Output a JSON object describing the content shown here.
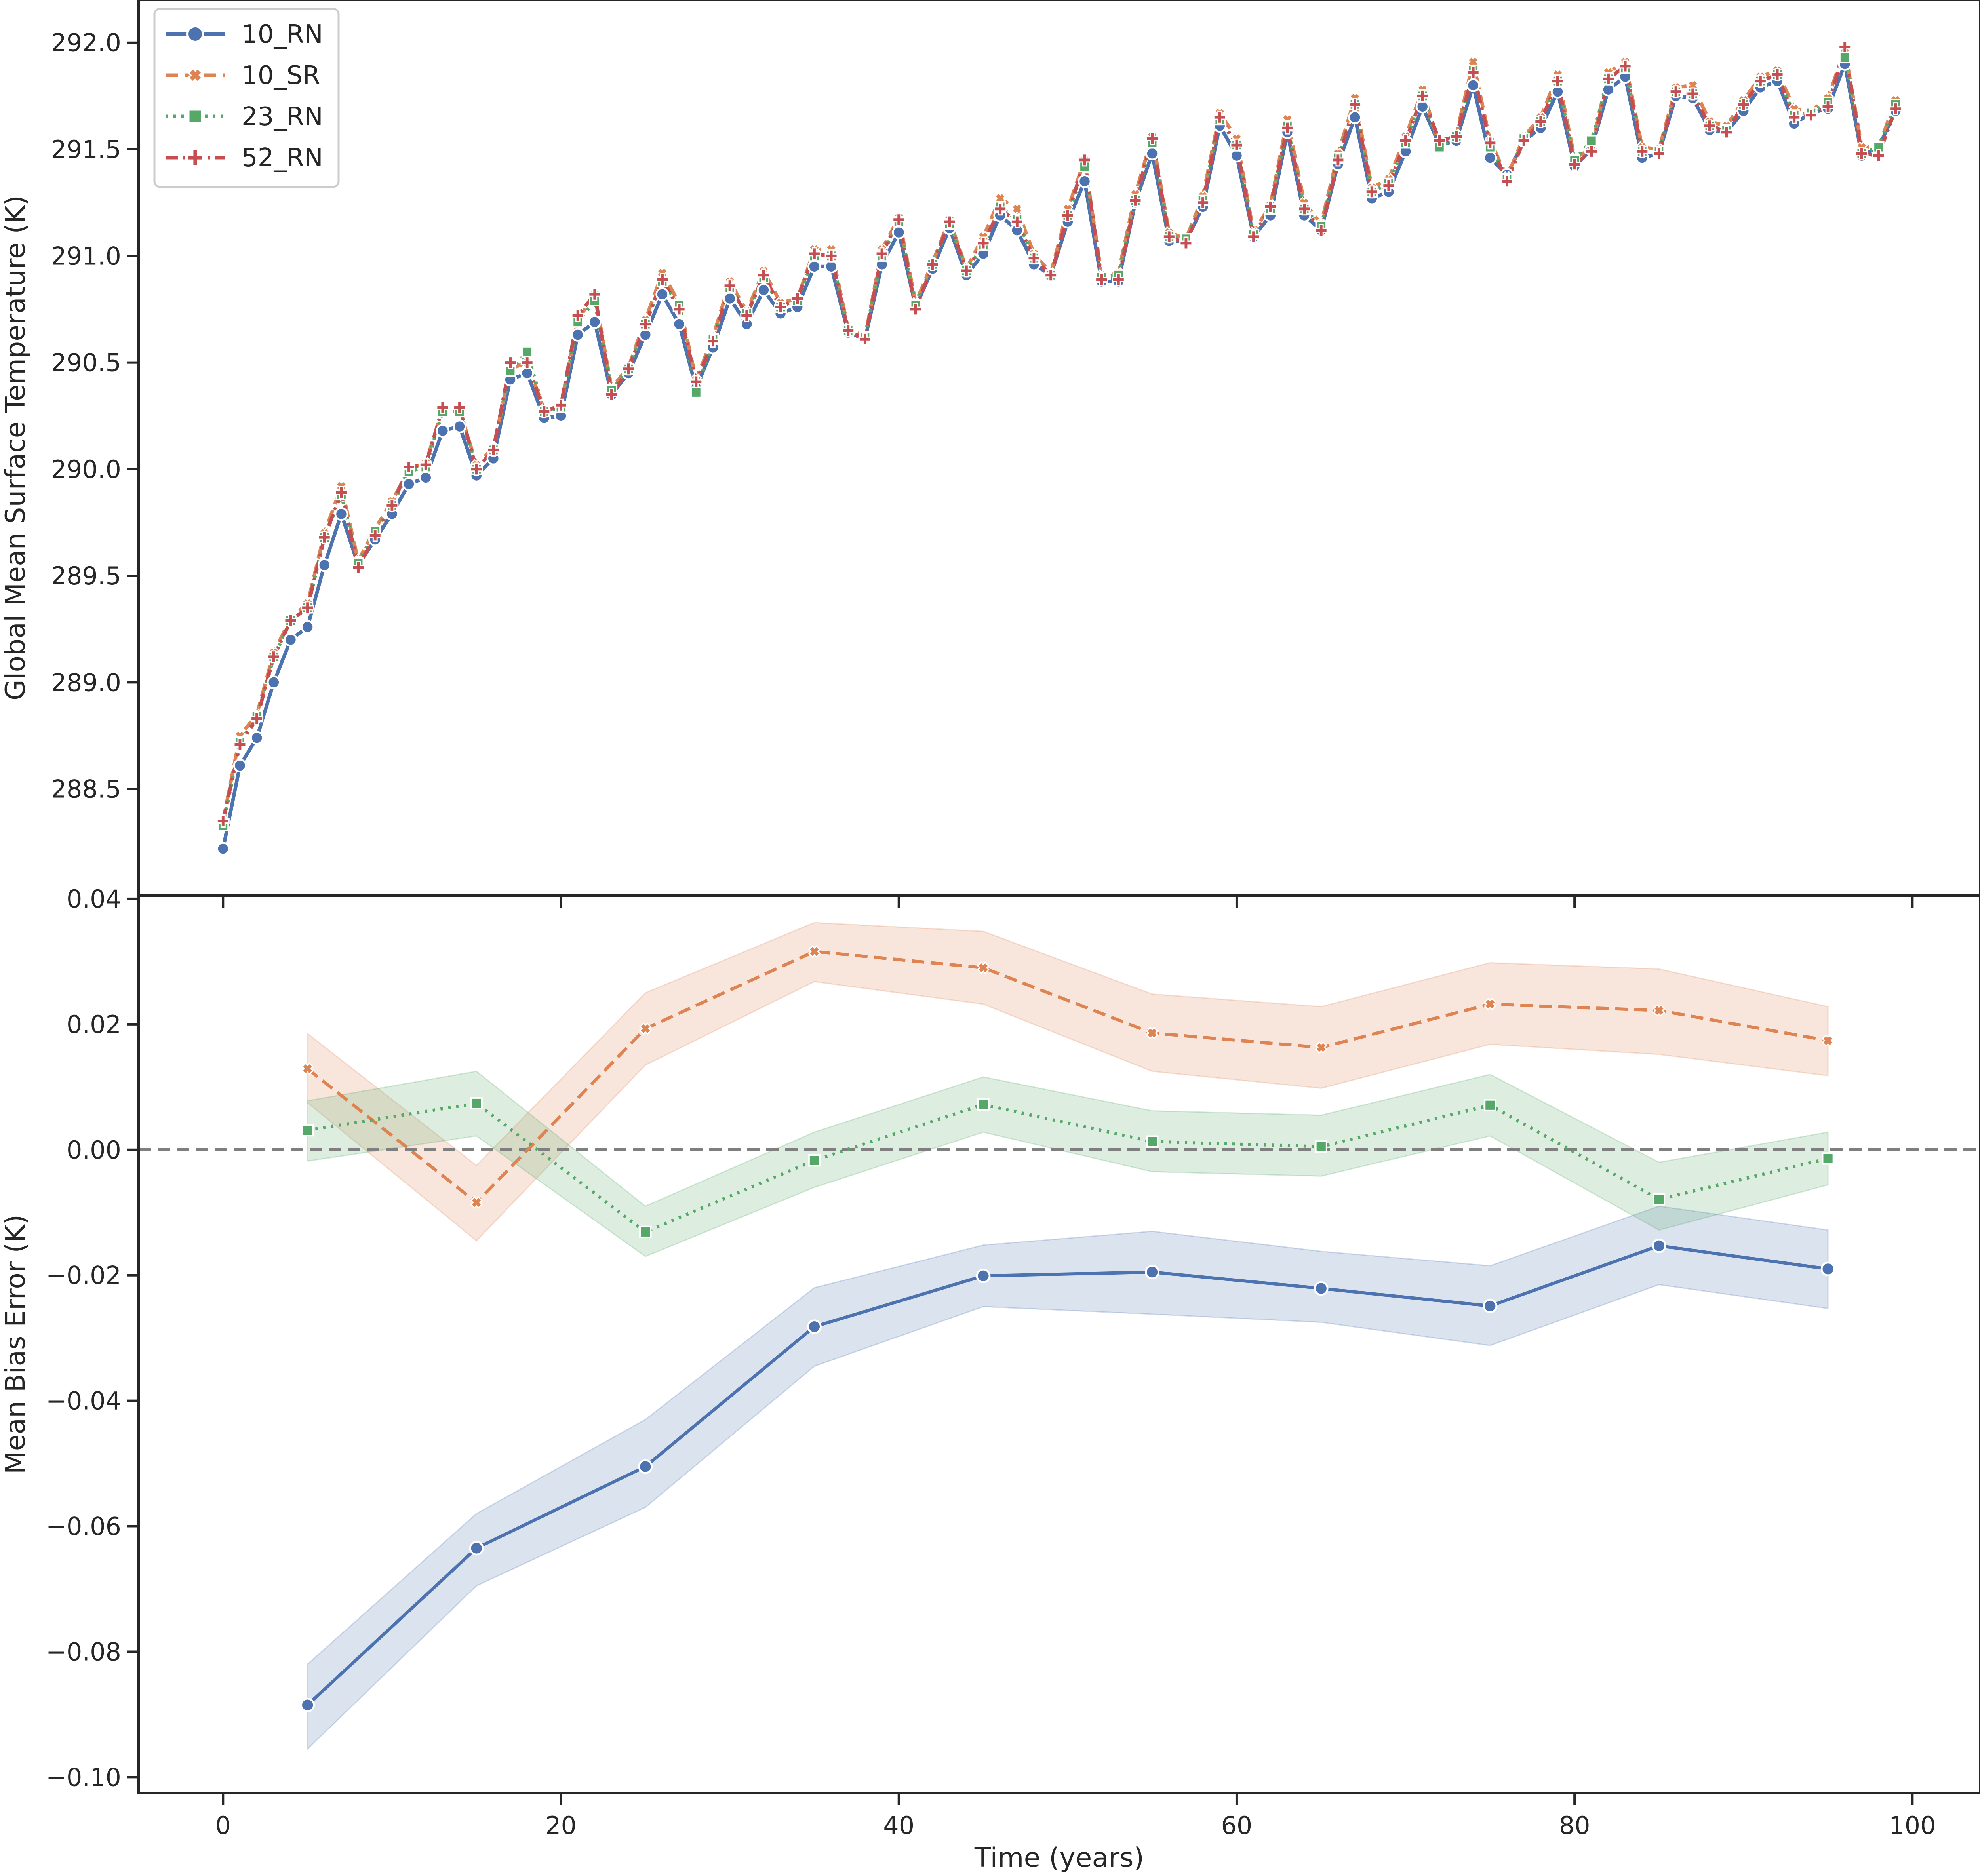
{
  "chart_data": [
    {
      "type": "line",
      "xlabel": "",
      "ylabel": "Global Mean Surface Temperature (K)",
      "xlim": [
        -5,
        104
      ],
      "ylim": [
        288.0,
        292.2
      ],
      "x_ticks": [
        0,
        20,
        40,
        60,
        80,
        100
      ],
      "x_tick_labels": [
        "",
        "",
        "",
        "",
        "",
        ""
      ],
      "y_ticks": [
        288.5,
        289.0,
        289.5,
        290.0,
        290.5,
        291.0,
        291.5,
        292.0
      ],
      "y_tick_labels": [
        "288.5",
        "289.0",
        "289.5",
        "290.0",
        "290.5",
        "291.0",
        "291.5",
        "292.0"
      ],
      "grid": false,
      "legend_position": "top-left",
      "legend": [
        "10_RN",
        "10_SR",
        "23_RN",
        "52_RN"
      ],
      "x": [
        0,
        1,
        2,
        3,
        4,
        5,
        6,
        7,
        8,
        9,
        10,
        11,
        12,
        13,
        14,
        15,
        16,
        17,
        18,
        19,
        20,
        21,
        22,
        23,
        24,
        25,
        26,
        27,
        28,
        29,
        30,
        31,
        32,
        33,
        34,
        35,
        36,
        37,
        38,
        39,
        40,
        41,
        42,
        43,
        44,
        45,
        46,
        47,
        48,
        49,
        50,
        51,
        52,
        53,
        54,
        55,
        56,
        57,
        58,
        59,
        60,
        61,
        62,
        63,
        64,
        65,
        66,
        67,
        68,
        69,
        70,
        71,
        72,
        73,
        74,
        75,
        76,
        77,
        78,
        79,
        80,
        81,
        82,
        83,
        84,
        85,
        86,
        87,
        88,
        89,
        90,
        91,
        92,
        93,
        94,
        95,
        96,
        97,
        98,
        99
      ],
      "series": [
        {
          "name": "10_RN",
          "color": "#4c72b0",
          "marker": "circle",
          "dash": "solid",
          "values": [
            288.22,
            288.61,
            288.74,
            289.0,
            289.2,
            289.26,
            289.55,
            289.79,
            289.55,
            289.67,
            289.79,
            289.93,
            289.96,
            290.18,
            290.2,
            289.97,
            290.05,
            290.42,
            290.45,
            290.24,
            290.25,
            290.63,
            290.69,
            290.35,
            290.45,
            290.63,
            290.82,
            290.68,
            290.38,
            290.57,
            290.8,
            290.68,
            290.84,
            290.73,
            290.76,
            290.95,
            290.95,
            290.64,
            290.61,
            290.96,
            291.11,
            290.76,
            290.94,
            291.13,
            290.91,
            291.01,
            291.19,
            291.12,
            290.96,
            290.91,
            291.16,
            291.35,
            290.88,
            290.88,
            291.25,
            291.48,
            291.07,
            291.07,
            291.23,
            291.61,
            291.47,
            291.09,
            291.19,
            291.58,
            291.19,
            291.12,
            291.43,
            291.65,
            291.27,
            291.3,
            291.49,
            291.7,
            291.52,
            291.54,
            291.8,
            291.46,
            291.38,
            291.54,
            291.6,
            291.77,
            291.42,
            291.5,
            291.78,
            291.84,
            291.46,
            291.48,
            291.75,
            291.74,
            291.59,
            291.58,
            291.68,
            291.79,
            291.82,
            291.62,
            291.67,
            291.69,
            291.9,
            291.47,
            291.51,
            291.68
          ]
        },
        {
          "name": "10_SR",
          "color": "#dd8452",
          "marker": "x",
          "dash": "dashed",
          "values": [
            288.35,
            288.75,
            288.85,
            289.14,
            289.3,
            289.37,
            289.7,
            289.92,
            289.57,
            289.72,
            289.85,
            290.0,
            290.03,
            290.28,
            290.28,
            290.02,
            290.1,
            290.47,
            290.5,
            290.28,
            290.3,
            290.7,
            290.82,
            290.38,
            290.48,
            290.7,
            290.92,
            290.78,
            290.42,
            290.62,
            290.88,
            290.74,
            290.93,
            290.78,
            290.8,
            291.03,
            291.03,
            290.66,
            290.62,
            291.03,
            291.18,
            290.78,
            290.97,
            291.17,
            290.94,
            291.09,
            291.27,
            291.22,
            291.01,
            290.92,
            291.22,
            291.45,
            290.91,
            290.92,
            291.29,
            291.56,
            291.11,
            291.08,
            291.28,
            291.67,
            291.55,
            291.11,
            291.24,
            291.64,
            291.25,
            291.15,
            291.48,
            291.74,
            291.32,
            291.36,
            291.56,
            291.78,
            291.52,
            291.57,
            291.91,
            291.54,
            291.37,
            291.56,
            291.65,
            291.85,
            291.46,
            291.5,
            291.86,
            291.91,
            291.51,
            291.5,
            291.79,
            291.8,
            291.63,
            291.61,
            291.73,
            291.84,
            291.87,
            291.69,
            291.68,
            291.74,
            291.97,
            291.51,
            291.51,
            291.73
          ]
        },
        {
          "name": "23_RN",
          "color": "#55a868",
          "marker": "square",
          "dash": "dotted",
          "values": [
            288.33,
            288.72,
            288.84,
            289.12,
            289.29,
            289.35,
            289.68,
            289.88,
            289.56,
            289.71,
            289.83,
            289.99,
            290.01,
            290.27,
            290.27,
            290.0,
            290.09,
            290.46,
            290.55,
            290.27,
            290.29,
            290.69,
            290.79,
            290.37,
            290.47,
            290.68,
            290.88,
            290.77,
            290.36,
            290.61,
            290.85,
            290.73,
            290.9,
            290.76,
            290.79,
            291.0,
            291.0,
            290.65,
            290.62,
            291.0,
            291.16,
            290.77,
            290.96,
            291.15,
            290.93,
            291.05,
            291.23,
            291.17,
            290.99,
            290.91,
            291.19,
            291.42,
            290.9,
            290.91,
            291.26,
            291.53,
            291.09,
            291.08,
            291.26,
            291.64,
            291.52,
            291.1,
            291.22,
            291.61,
            291.22,
            291.14,
            291.46,
            291.71,
            291.3,
            291.34,
            291.53,
            291.75,
            291.51,
            291.56,
            291.87,
            291.51,
            291.36,
            291.55,
            291.63,
            291.82,
            291.45,
            291.54,
            291.83,
            291.88,
            291.49,
            291.49,
            291.77,
            291.76,
            291.61,
            291.59,
            291.71,
            291.82,
            291.85,
            291.66,
            291.67,
            291.72,
            291.93,
            291.48,
            291.51,
            291.71
          ]
        },
        {
          "name": "52_RN",
          "color": "#c44e52",
          "marker": "plus",
          "dash": "dashdot",
          "values": [
            288.35,
            288.71,
            288.83,
            289.12,
            289.29,
            289.35,
            289.68,
            289.89,
            289.54,
            289.69,
            289.83,
            290.01,
            290.02,
            290.29,
            290.29,
            290.0,
            290.09,
            290.5,
            290.5,
            290.27,
            290.3,
            290.72,
            290.82,
            290.35,
            290.47,
            290.68,
            290.89,
            290.75,
            290.41,
            290.6,
            290.86,
            290.72,
            290.91,
            290.76,
            290.8,
            291.01,
            291.0,
            290.65,
            290.61,
            291.01,
            291.17,
            290.75,
            290.96,
            291.16,
            290.93,
            291.06,
            291.22,
            291.16,
            290.99,
            290.91,
            291.19,
            291.45,
            290.89,
            290.89,
            291.26,
            291.55,
            291.09,
            291.06,
            291.25,
            291.65,
            291.52,
            291.09,
            291.23,
            291.6,
            291.22,
            291.12,
            291.45,
            291.71,
            291.3,
            291.33,
            291.54,
            291.75,
            291.54,
            291.56,
            291.86,
            291.53,
            291.35,
            291.54,
            291.63,
            291.82,
            291.43,
            291.49,
            291.83,
            291.89,
            291.49,
            291.48,
            291.77,
            291.76,
            291.61,
            291.58,
            291.71,
            291.82,
            291.85,
            291.65,
            291.66,
            291.7,
            291.98,
            291.48,
            291.47,
            291.69
          ]
        }
      ]
    },
    {
      "type": "line",
      "xlabel": "Time (years)",
      "ylabel": "Mean Bias Error (K)",
      "xlim": [
        -5,
        104
      ],
      "ylim": [
        -0.1025,
        0.0405
      ],
      "x_ticks": [
        0,
        20,
        40,
        60,
        80,
        100
      ],
      "x_tick_labels": [
        "0",
        "20",
        "40",
        "60",
        "80",
        "100"
      ],
      "y_ticks": [
        -0.1,
        -0.08,
        -0.06,
        -0.04,
        -0.02,
        0.0,
        0.02,
        0.04
      ],
      "y_tick_labels": [
        "−0.10",
        "−0.08",
        "−0.06",
        "−0.04",
        "−0.02",
        "0.00",
        "0.02",
        "0.04"
      ],
      "grid": false,
      "reference_line": {
        "y": 0.0,
        "style": "dashed",
        "color": "#7f7f7f"
      },
      "x": [
        5,
        15,
        25,
        35,
        45,
        55,
        65,
        75,
        85,
        95
      ],
      "series": [
        {
          "name": "10_RN",
          "color": "#4c72b0",
          "marker": "circle",
          "dash": "solid",
          "values": [
            -0.0885,
            -0.0635,
            -0.0505,
            -0.0282,
            -0.0201,
            -0.0195,
            -0.0221,
            -0.0249,
            -0.0153,
            -0.019
          ],
          "lower": [
            -0.0955,
            -0.0695,
            -0.057,
            -0.0345,
            -0.025,
            -0.0262,
            -0.0275,
            -0.0312,
            -0.0215,
            -0.0253
          ],
          "upper": [
            -0.082,
            -0.058,
            -0.043,
            -0.022,
            -0.0152,
            -0.013,
            -0.0162,
            -0.0185,
            -0.009,
            -0.0128
          ]
        },
        {
          "name": "10_SR",
          "color": "#dd8452",
          "marker": "x",
          "dash": "dashed",
          "values": [
            0.0129,
            -0.0084,
            0.0193,
            0.0316,
            0.029,
            0.0186,
            0.0163,
            0.0232,
            0.0222,
            0.0174
          ],
          "lower": [
            0.0075,
            -0.0145,
            0.0135,
            0.0268,
            0.0232,
            0.0125,
            0.0098,
            0.0168,
            0.0152,
            0.0118
          ],
          "upper": [
            0.0185,
            -0.0025,
            0.025,
            0.0362,
            0.0348,
            0.0248,
            0.0228,
            0.0298,
            0.0288,
            0.0228
          ]
        },
        {
          "name": "23_RN",
          "color": "#55a868",
          "marker": "square",
          "dash": "dotted",
          "values": [
            0.0031,
            0.0074,
            -0.0131,
            -0.0017,
            0.0072,
            0.0013,
            0.0005,
            0.0071,
            -0.0079,
            -0.0014
          ],
          "lower": [
            -0.0018,
            0.0022,
            -0.017,
            -0.006,
            0.0028,
            -0.0035,
            -0.0042,
            0.0022,
            -0.0128,
            -0.0056
          ],
          "upper": [
            0.0078,
            0.0125,
            -0.009,
            0.0028,
            0.0116,
            0.0062,
            0.0055,
            0.012,
            -0.002,
            0.0028
          ]
        }
      ]
    }
  ]
}
